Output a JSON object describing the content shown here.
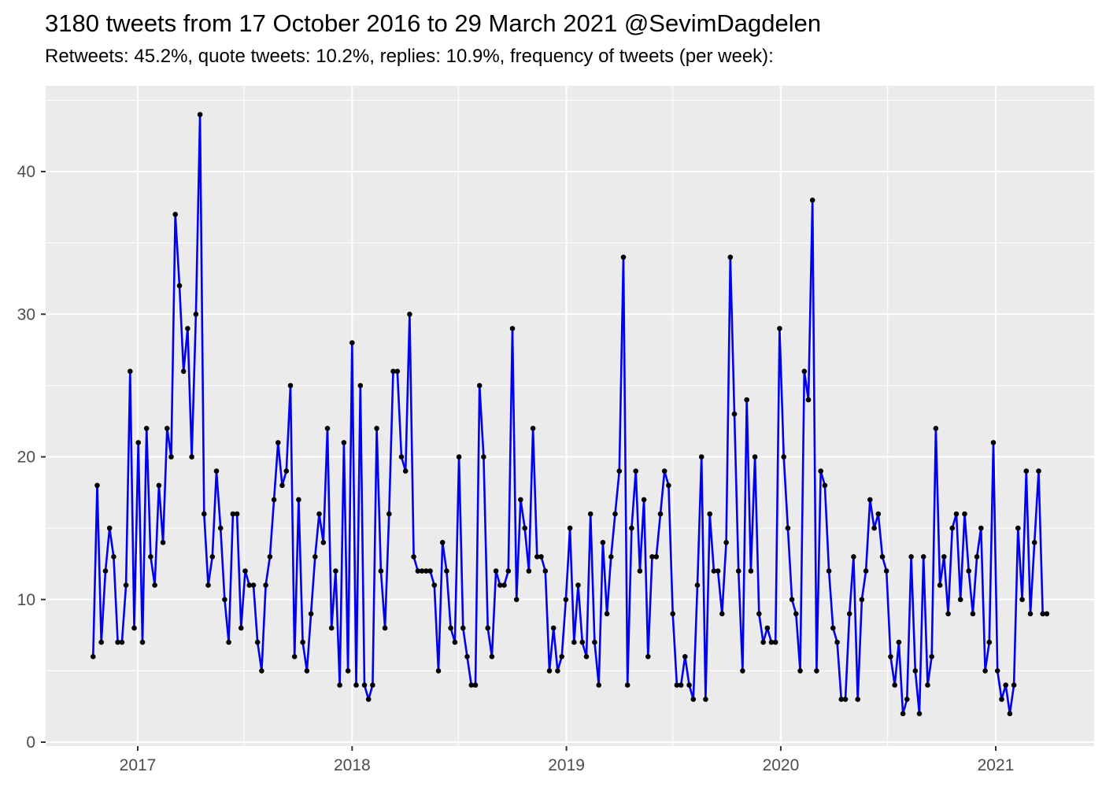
{
  "header": {
    "title": "3180 tweets from 17 October 2016 to 29 March 2021 @SevimDagdelen",
    "subtitle": "Retweets: 45.2%, quote tweets: 10.2%, replies: 10.9%, frequency of tweets (per week):"
  },
  "chart_data": {
    "type": "line",
    "title": "3180 tweets from 17 October 2016 to 29 March 2021 @SevimDagdelen",
    "subtitle": "Retweets: 45.2%, quote tweets: 10.2%, replies: 10.9%, frequency of tweets (per week):",
    "xlabel": "",
    "ylabel": "",
    "series_name": "tweets per week",
    "frequency": "weekly",
    "start_date": "2016-10-17",
    "end_date": "2021-03-29",
    "n_points": 233,
    "x_tick_labels": [
      "2017",
      "2018",
      "2019",
      "2020",
      "2021"
    ],
    "x_minor_ticks": [
      "2017-07-01",
      "2018-07-01",
      "2019-07-01",
      "2020-07-01"
    ],
    "y_ticks": [
      0,
      10,
      20,
      30,
      40
    ],
    "y_minor_ticks": [
      5,
      15,
      25,
      35,
      45
    ],
    "ylim": [
      0,
      46
    ],
    "grid": "on",
    "legend": "none",
    "colors": {
      "line": "#0000EE",
      "point": "#000000",
      "panel_background": "#EBEBEB",
      "gridline": "#FFFFFF",
      "axis_text": "#4D4D4D",
      "tick_mark": "#333333",
      "page_background": "#FFFFFF"
    },
    "values": [
      6,
      18,
      7,
      12,
      15,
      13,
      7,
      7,
      11,
      26,
      8,
      21,
      7,
      22,
      13,
      11,
      18,
      14,
      22,
      20,
      37,
      32,
      26,
      29,
      20,
      30,
      44,
      16,
      11,
      13,
      19,
      15,
      10,
      7,
      16,
      16,
      8,
      12,
      11,
      11,
      7,
      5,
      11,
      13,
      17,
      21,
      18,
      19,
      25,
      6,
      17,
      7,
      5,
      9,
      13,
      16,
      14,
      22,
      8,
      12,
      4,
      21,
      5,
      28,
      4,
      25,
      4,
      3,
      4,
      22,
      12,
      8,
      16,
      26,
      26,
      20,
      19,
      30,
      13,
      12,
      12,
      12,
      12,
      11,
      5,
      14,
      12,
      8,
      7,
      20,
      8,
      6,
      4,
      4,
      25,
      20,
      8,
      6,
      12,
      11,
      11,
      12,
      29,
      10,
      17,
      15,
      12,
      22,
      13,
      13,
      12,
      5,
      8,
      5,
      6,
      10,
      15,
      7,
      11,
      7,
      6,
      16,
      7,
      4,
      14,
      9,
      13,
      16,
      19,
      34,
      4,
      15,
      19,
      12,
      17,
      6,
      13,
      13,
      16,
      19,
      18,
      9,
      4,
      4,
      6,
      4,
      3,
      11,
      20,
      3,
      16,
      12,
      12,
      9,
      14,
      34,
      23,
      12,
      5,
      24,
      12,
      20,
      9,
      7,
      8,
      7,
      7,
      29,
      20,
      15,
      10,
      9,
      5,
      26,
      24,
      38,
      5,
      19,
      18,
      12,
      8,
      7,
      3,
      3,
      9,
      13,
      3,
      10,
      12,
      17,
      15,
      16,
      13,
      12,
      6,
      4,
      7,
      2,
      3,
      13,
      5,
      2,
      13,
      4,
      6,
      22,
      11,
      13,
      9,
      15,
      16,
      10,
      16,
      12,
      9,
      13,
      15,
      5,
      7,
      21,
      5,
      3,
      4,
      2,
      4,
      15,
      10,
      19,
      9,
      14,
      19,
      9,
      9
    ]
  }
}
